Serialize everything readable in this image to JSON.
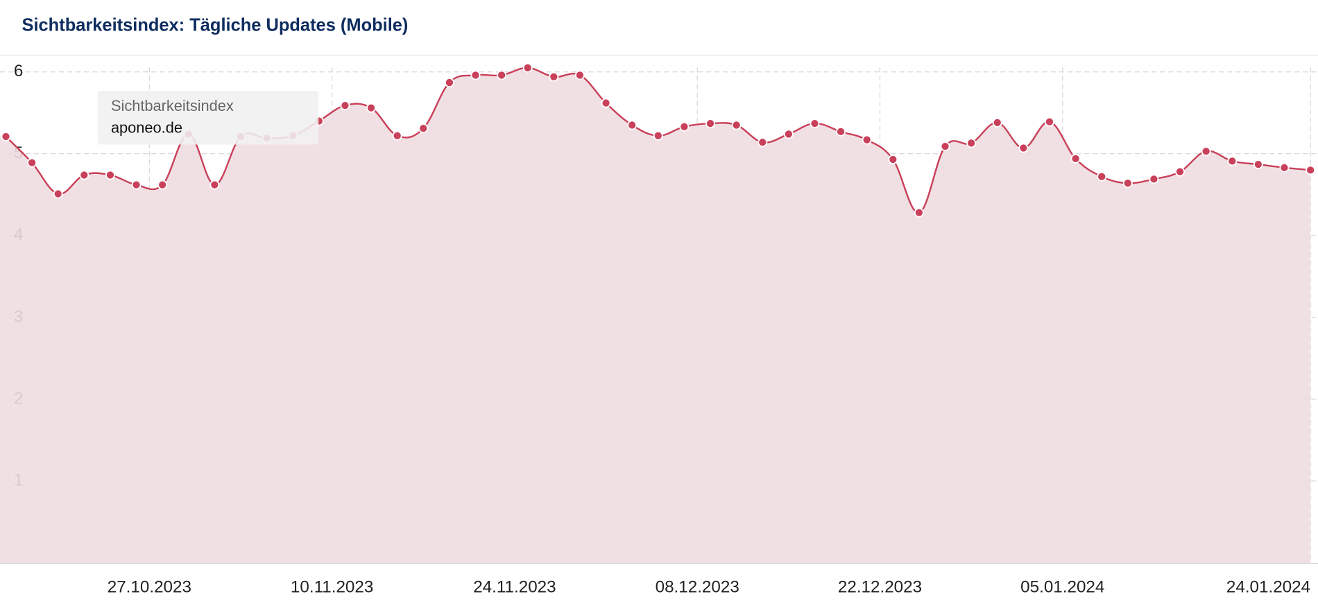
{
  "chart_data": {
    "type": "area",
    "title": "Sichtbarkeitsindex: Tägliche Updates (Mobile)",
    "tooltip": {
      "title": "Sichtbarkeitsindex",
      "text": "aponeo.de"
    },
    "x": [
      "16.10.2023",
      "18.10.2023",
      "20.10.2023",
      "22.10.2023",
      "24.10.2023",
      "26.10.2023",
      "28.10.2023",
      "30.10.2023",
      "01.11.2023",
      "03.11.2023",
      "05.11.2023",
      "07.11.2023",
      "09.11.2023",
      "11.11.2023",
      "13.11.2023",
      "15.11.2023",
      "17.11.2023",
      "19.11.2023",
      "21.11.2023",
      "23.11.2023",
      "25.11.2023",
      "27.11.2023",
      "29.11.2023",
      "01.12.2023",
      "03.12.2023",
      "05.12.2023",
      "07.12.2023",
      "09.12.2023",
      "11.12.2023",
      "13.12.2023",
      "15.12.2023",
      "17.12.2023",
      "19.12.2023",
      "21.12.2023",
      "23.12.2023",
      "25.12.2023",
      "27.12.2023",
      "29.12.2023",
      "31.12.2023",
      "02.01.2024",
      "04.01.2024",
      "06.01.2024",
      "08.01.2024",
      "10.01.2024",
      "12.01.2024",
      "14.01.2024",
      "16.01.2024",
      "18.01.2024",
      "20.01.2024",
      "22.01.2024",
      "24.01.2024"
    ],
    "series": [
      {
        "name": "aponeo.de",
        "color": "#c9405a",
        "values": [
          5.21,
          4.89,
          4.51,
          4.74,
          4.74,
          4.62,
          4.62,
          5.24,
          4.62,
          5.21,
          5.19,
          5.22,
          5.4,
          5.59,
          5.56,
          5.22,
          5.31,
          5.87,
          5.96,
          5.96,
          6.05,
          5.94,
          5.96,
          5.62,
          5.35,
          5.22,
          5.33,
          5.37,
          5.35,
          5.14,
          5.24,
          5.37,
          5.27,
          5.17,
          4.93,
          4.28,
          5.09,
          5.13,
          5.38,
          5.07,
          5.39,
          4.94,
          4.72,
          4.64,
          4.69,
          4.78,
          5.03,
          4.91,
          4.87,
          4.83,
          4.8
        ]
      }
    ],
    "area_color": "#f0dde0",
    "xlim": [
      "16.10.2023",
      "24.01.2024"
    ],
    "xticks": [
      "27.10.2023",
      "10.11.2023",
      "24.11.2023",
      "08.12.2023",
      "22.12.2023",
      "05.01.2024",
      "24.01.2024"
    ],
    "ylim": [
      0,
      6.2
    ],
    "yticks": [
      1,
      2,
      3,
      4,
      5,
      6
    ],
    "grid": true
  }
}
